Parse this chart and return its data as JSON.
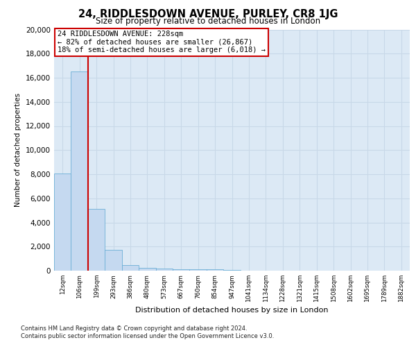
{
  "title": "24, RIDDLESDOWN AVENUE, PURLEY, CR8 1JG",
  "subtitle": "Size of property relative to detached houses in London",
  "xlabel": "Distribution of detached houses by size in London",
  "ylabel": "Number of detached properties",
  "categories": [
    "12sqm",
    "106sqm",
    "199sqm",
    "293sqm",
    "386sqm",
    "480sqm",
    "573sqm",
    "667sqm",
    "760sqm",
    "854sqm",
    "947sqm",
    "1041sqm",
    "1134sqm",
    "1228sqm",
    "1321sqm",
    "1415sqm",
    "1508sqm",
    "1602sqm",
    "1695sqm",
    "1789sqm",
    "1882sqm"
  ],
  "bar_heights": [
    8050,
    16500,
    5100,
    1700,
    450,
    220,
    150,
    110,
    100,
    95,
    30,
    15,
    10,
    10,
    10,
    10,
    10,
    10,
    10,
    10,
    10
  ],
  "bar_color": "#c5d9f0",
  "bar_edge_color": "#6baed6",
  "annotation_text1": "24 RIDDLESDOWN AVENUE: 228sqm",
  "annotation_text2": "← 82% of detached houses are smaller (26,867)",
  "annotation_text3": "18% of semi-detached houses are larger (6,018) →",
  "red_line_color": "#cc0000",
  "annotation_box_edge": "#cc0000",
  "background_color": "#dce9f5",
  "grid_color": "#c8d8e8",
  "ylim": [
    0,
    20000
  ],
  "yticks": [
    0,
    2000,
    4000,
    6000,
    8000,
    10000,
    12000,
    14000,
    16000,
    18000,
    20000
  ],
  "footer_line1": "Contains HM Land Registry data © Crown copyright and database right 2024.",
  "footer_line2": "Contains public sector information licensed under the Open Government Licence v3.0."
}
